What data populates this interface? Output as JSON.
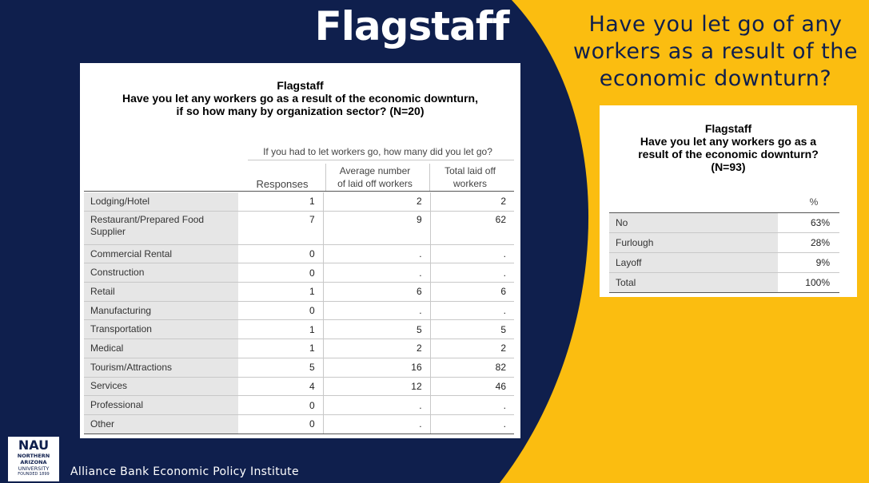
{
  "slide": {
    "title": "Flagstaff",
    "question": "Have you let go of any workers as a result of the economic downturn?",
    "footer": "Alliance Bank Economic Policy Institute",
    "colors": {
      "navy": "#0f1f4d",
      "gold": "#fbbd10",
      "white": "#ffffff"
    }
  },
  "logo": {
    "line1": "NAU",
    "line2": "NORTHERN",
    "line3": "ARIZONA",
    "line4": "UNIVERSITY",
    "line5": "FOUNDED 1899"
  },
  "table1": {
    "title_line1": "Flagstaff",
    "title_line2": "Have you let any workers go as a result of the economic downturn,",
    "title_line3": "if so how many by organization sector?  (N=20)",
    "group_header": "If you had to let workers go, how many did you let go?",
    "col_responses": "Responses",
    "col_avg_line1": "Average number",
    "col_avg_line2": "of laid off workers",
    "col_total_line1": "Total laid off",
    "col_total_line2": "workers",
    "rows": [
      {
        "label": "Lodging/Hotel",
        "responses": "1",
        "avg": "2",
        "total": "2"
      },
      {
        "label": "Restaurant/Prepared Food Supplier",
        "responses": "7",
        "avg": "9",
        "total": "62"
      },
      {
        "label": "Commercial Rental",
        "responses": "0",
        "avg": ".",
        "total": "."
      },
      {
        "label": "Construction",
        "responses": "0",
        "avg": ".",
        "total": "."
      },
      {
        "label": "Retail",
        "responses": "1",
        "avg": "6",
        "total": "6"
      },
      {
        "label": "Manufacturing",
        "responses": "0",
        "avg": ".",
        "total": "."
      },
      {
        "label": "Transportation",
        "responses": "1",
        "avg": "5",
        "total": "5"
      },
      {
        "label": "Medical",
        "responses": "1",
        "avg": "2",
        "total": "2"
      },
      {
        "label": "Tourism/Attractions",
        "responses": "5",
        "avg": "16",
        "total": "82"
      },
      {
        "label": "Services",
        "responses": "4",
        "avg": "12",
        "total": "46"
      },
      {
        "label": "Professional",
        "responses": "0",
        "avg": ".",
        "total": "."
      },
      {
        "label": "Other",
        "responses": "0",
        "avg": ".",
        "total": "."
      }
    ]
  },
  "table2": {
    "title_line1": "Flagstaff",
    "title_line2": "Have you let any workers go as a",
    "title_line3": "result of the economic downturn?",
    "title_line4": "(N=93)",
    "col_pct": "%",
    "rows": [
      {
        "label": "No",
        "pct": "63%"
      },
      {
        "label": "Furlough",
        "pct": "28%"
      },
      {
        "label": "Layoff",
        "pct": "9%"
      },
      {
        "label": "Total",
        "pct": "100%"
      }
    ]
  }
}
